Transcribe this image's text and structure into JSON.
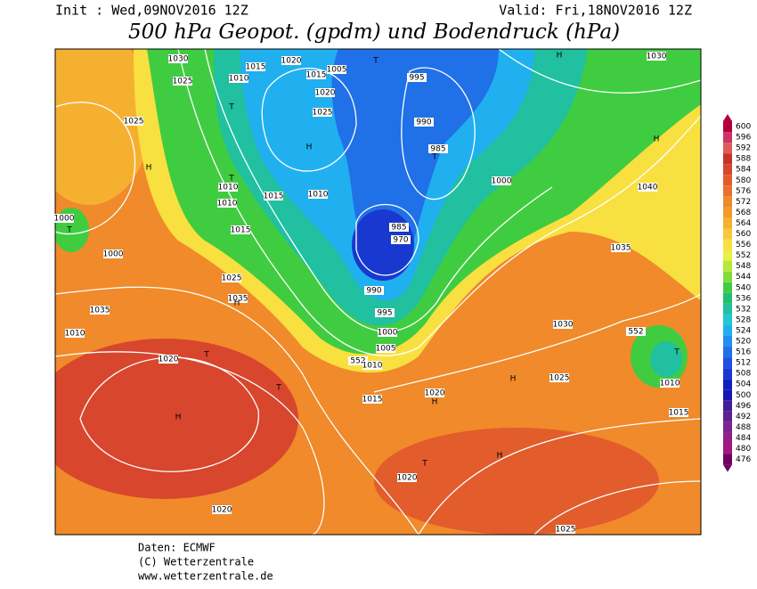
{
  "header": {
    "init": "Init : Wed,09NOV2016 12Z",
    "valid": "Valid: Fri,18NOV2016 12Z",
    "title": "500 hPa Geopot. (gpdm) und Bodendruck (hPa)"
  },
  "colorbar": {
    "values": [
      600,
      596,
      592,
      588,
      584,
      580,
      576,
      572,
      568,
      564,
      560,
      556,
      552,
      548,
      544,
      540,
      536,
      532,
      528,
      524,
      520,
      516,
      512,
      508,
      504,
      500,
      496,
      492,
      488,
      484,
      480,
      476
    ],
    "colors": [
      "#b3003a",
      "#cc3366",
      "#e05a5a",
      "#c83228",
      "#d8462d",
      "#e25c2c",
      "#ea7030",
      "#ee8a2a",
      "#f29a2a",
      "#f6b030",
      "#f8c83a",
      "#f8e040",
      "#e8f040",
      "#b8e838",
      "#80dc38",
      "#40cc40",
      "#20c070",
      "#20c0a0",
      "#20c8d0",
      "#20b0f0",
      "#2090f0",
      "#2070e8",
      "#2050e0",
      "#1838d0",
      "#1020c0",
      "#1818b0",
      "#402098",
      "#602090",
      "#802090",
      "#902088",
      "#a01880",
      "#700060"
    ]
  },
  "map_labels": [
    "1030",
    "1015",
    "1020",
    "1005",
    "T",
    "1025",
    "1010",
    "1015",
    "995",
    "1030",
    "H",
    "1020",
    "T",
    "1025",
    "990",
    "1025",
    "H",
    "985",
    "T",
    "H",
    "H",
    "T",
    "1010",
    "1015",
    "1010",
    "1000",
    "1040",
    "1010",
    "1015",
    "1000",
    "T",
    "985",
    "970",
    "1000",
    "1035",
    "1025",
    "1035",
    "H",
    "990",
    "1035",
    "995",
    "1030",
    "552",
    "1010",
    "1000",
    "1005",
    "T",
    "1020",
    "552",
    "1010",
    "T",
    "1025",
    "T",
    "1010",
    "H",
    "1020",
    "1015",
    "H",
    "1015",
    "H",
    "T",
    "H",
    "1020",
    "1020",
    "1025"
  ],
  "footer": {
    "source": "Daten: ECMWF",
    "copyright": "(C) Wetterzentrale",
    "url": "www.wetterzentrale.de"
  }
}
